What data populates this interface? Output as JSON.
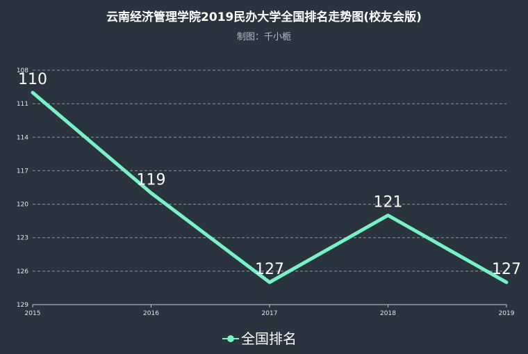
{
  "chart_data": {
    "type": "line",
    "title": "云南经济管理学院2019民办大学全国排名走势图(校友会版)",
    "subtitle": "制图：千小栀",
    "x": [
      "2015",
      "2016",
      "2017",
      "2018",
      "2019"
    ],
    "series": [
      {
        "name": "全国排名",
        "values": [
          110,
          119,
          127,
          121,
          127
        ],
        "color": "#7af0c6"
      }
    ],
    "y_inverse": true,
    "ylim": [
      108,
      129
    ],
    "yticks": [
      108,
      111,
      114,
      117,
      120,
      123,
      126,
      129
    ],
    "grid": true,
    "legend_position": "bottom-center"
  }
}
